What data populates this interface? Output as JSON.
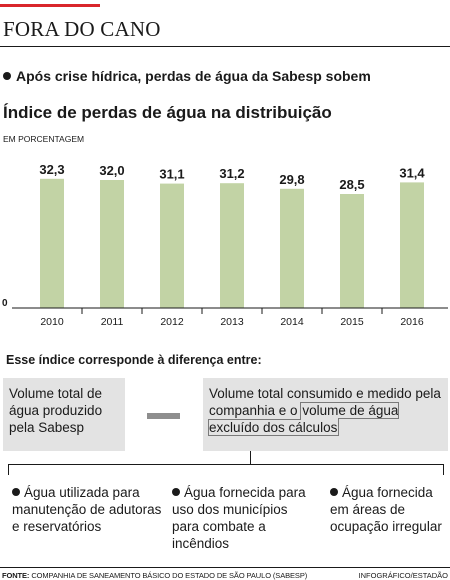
{
  "header": {
    "title": "FORA DO CANO",
    "subtitle": "Após crise hídrica, perdas de água da Sabesp sobem"
  },
  "colors": {
    "accent": "#d9262b",
    "bar": "#c2d3a5",
    "box": "#e3e3e3",
    "minus": "#8e8e8e"
  },
  "chart_data": {
    "type": "bar",
    "title": "Índice de perdas de água na distribuição",
    "unit_label": "EM PORCENTAGEM",
    "categories": [
      "2010",
      "2011",
      "2012",
      "2013",
      "2014",
      "2015",
      "2016"
    ],
    "values": [
      32.3,
      32.0,
      31.1,
      31.2,
      29.8,
      28.5,
      31.4
    ],
    "value_labels": [
      "32,3",
      "32,0",
      "31,1",
      "31,2",
      "29,8",
      "28,5",
      "31,4"
    ],
    "zero_label": "0",
    "ylim": [
      0,
      35
    ],
    "grid": false,
    "legend": "none"
  },
  "explanation": {
    "title": "Esse índice corresponde à diferença entre:",
    "left_box": "Volume total de água produzido pela Sabesp",
    "right_box_plain": "Volume total consumido e medido pela companhia e o",
    "right_box_framed": "volume de água excluído dos cálculos",
    "items": [
      "Água utilizada para manutenção de adutoras e reservatórios",
      "Água fornecida para uso dos municípios para combate a incêndios",
      "Água fornecida em áreas de ocupação irregular"
    ]
  },
  "footer": {
    "source_label": "FONTE:",
    "source_text": "COMPANHIA DE SANEAMENTO BÁSICO DO ESTADO DE SÃO PAULO (SABESP)",
    "credit": "INFOGRÁFICO/ESTADÃO"
  }
}
